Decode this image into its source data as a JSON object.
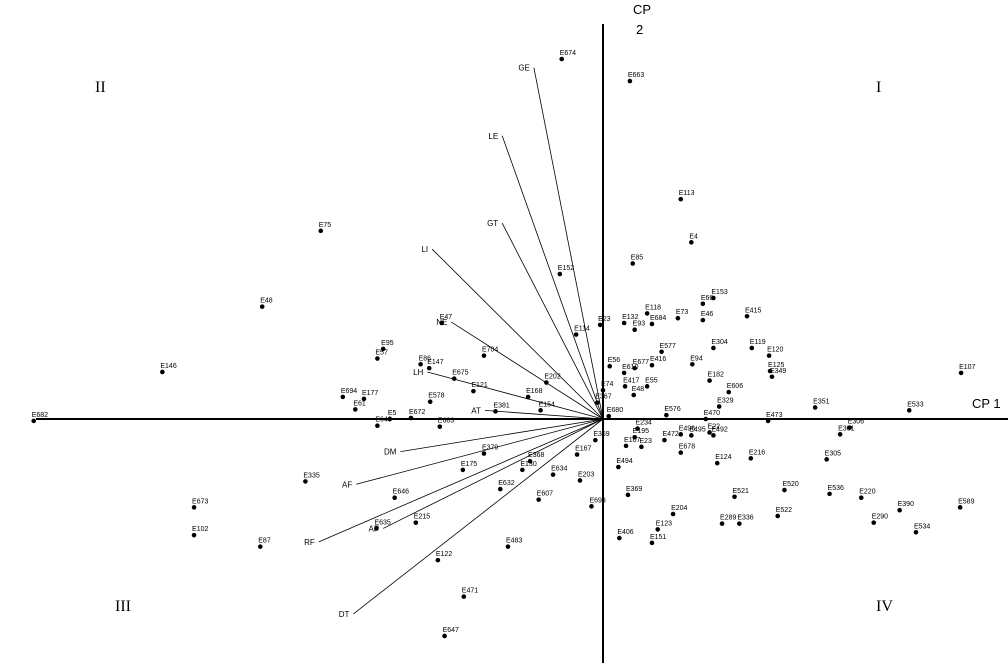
{
  "chart_data": {
    "type": "scatter",
    "title": "",
    "axes": {
      "x_label": "CP 1",
      "y_label": [
        "CP",
        "2"
      ]
    },
    "quadrant_labels": [
      "I",
      "II",
      "III",
      "IV"
    ],
    "xlim": [
      -6.0,
      4.0
    ],
    "ylim": [
      -2.7,
      4.0
    ],
    "grid": false,
    "legend": "none",
    "variables": [
      {
        "name": "GE",
        "x": -0.72,
        "y": 3.66
      },
      {
        "name": "LE",
        "x": -1.05,
        "y": 2.95
      },
      {
        "name": "GT",
        "x": -1.05,
        "y": 2.04
      },
      {
        "name": "LI",
        "x": -1.78,
        "y": 1.77
      },
      {
        "name": "NE",
        "x": -1.58,
        "y": 1.01
      },
      {
        "name": "LH",
        "x": -1.83,
        "y": 0.49
      },
      {
        "name": "AT",
        "x": -1.23,
        "y": 0.09
      },
      {
        "name": "DM",
        "x": -2.11,
        "y": -0.34
      },
      {
        "name": "AF",
        "x": -2.57,
        "y": -0.68
      },
      {
        "name": "AP",
        "x": -2.29,
        "y": -1.14
      },
      {
        "name": "RF",
        "x": -2.96,
        "y": -1.28
      },
      {
        "name": "DT",
        "x": -2.6,
        "y": -2.03
      }
    ],
    "points": [
      {
        "label": "E674",
        "x": -0.43,
        "y": 3.75
      },
      {
        "label": "E663",
        "x": 0.28,
        "y": 3.52
      },
      {
        "label": "E113",
        "x": 0.81,
        "y": 2.29
      },
      {
        "label": "E4",
        "x": 0.92,
        "y": 1.84
      },
      {
        "label": "E85",
        "x": 0.31,
        "y": 1.62
      },
      {
        "label": "E75",
        "x": -2.94,
        "y": 1.96
      },
      {
        "label": "E48",
        "x": -3.55,
        "y": 1.17
      },
      {
        "label": "E146",
        "x": -4.59,
        "y": 0.49
      },
      {
        "label": "E682",
        "x": -5.93,
        "y": -0.02
      },
      {
        "label": "E107",
        "x": 3.73,
        "y": 0.48
      },
      {
        "label": "E533",
        "x": 3.19,
        "y": 0.09
      },
      {
        "label": "E589",
        "x": 3.72,
        "y": -0.92
      },
      {
        "label": "E534",
        "x": 3.26,
        "y": -1.18
      },
      {
        "label": "E390",
        "x": 3.09,
        "y": -0.95
      },
      {
        "label": "E290",
        "x": 2.82,
        "y": -1.08
      },
      {
        "label": "E153",
        "x": 1.15,
        "y": 1.26
      },
      {
        "label": "E415",
        "x": 1.5,
        "y": 1.07
      },
      {
        "label": "E66",
        "x": 1.04,
        "y": 1.2
      },
      {
        "label": "E73",
        "x": 0.78,
        "y": 1.05
      },
      {
        "label": "E46",
        "x": 1.04,
        "y": 1.03
      },
      {
        "label": "E118",
        "x": 0.46,
        "y": 1.1
      },
      {
        "label": "E684",
        "x": 0.51,
        "y": 0.99
      },
      {
        "label": "E23",
        "x": -0.03,
        "y": 0.98
      },
      {
        "label": "E132",
        "x": 0.22,
        "y": 1.0
      },
      {
        "label": "E93",
        "x": 0.33,
        "y": 0.93
      },
      {
        "label": "E152",
        "x": -0.45,
        "y": 1.51
      },
      {
        "label": "E114",
        "x": -0.28,
        "y": 0.88
      },
      {
        "label": "E304",
        "x": 1.15,
        "y": 0.74
      },
      {
        "label": "E119",
        "x": 1.55,
        "y": 0.74
      },
      {
        "label": "E120",
        "x": 1.73,
        "y": 0.66
      },
      {
        "label": "E577",
        "x": 0.61,
        "y": 0.7
      },
      {
        "label": "E94",
        "x": 0.93,
        "y": 0.57
      },
      {
        "label": "E56",
        "x": 0.07,
        "y": 0.55
      },
      {
        "label": "E677",
        "x": 0.33,
        "y": 0.53
      },
      {
        "label": "E416",
        "x": 0.51,
        "y": 0.56
      },
      {
        "label": "E610",
        "x": 0.22,
        "y": 0.48
      },
      {
        "label": "E182",
        "x": 1.11,
        "y": 0.4
      },
      {
        "label": "E125",
        "x": 1.74,
        "y": 0.5
      },
      {
        "label": "E349",
        "x": 1.76,
        "y": 0.44
      },
      {
        "label": "E417",
        "x": 0.23,
        "y": 0.34
      },
      {
        "label": "E55",
        "x": 0.46,
        "y": 0.34
      },
      {
        "label": "E48b",
        "x": 0.32,
        "y": 0.25
      },
      {
        "label": "E606",
        "x": 1.31,
        "y": 0.28
      },
      {
        "label": "E329",
        "x": 1.21,
        "y": 0.13
      },
      {
        "label": "E351",
        "x": 2.21,
        "y": 0.12
      },
      {
        "label": "E74",
        "x": 0.0,
        "y": 0.3
      },
      {
        "label": "E367",
        "x": -0.06,
        "y": 0.17
      },
      {
        "label": "E202",
        "x": -0.59,
        "y": 0.38
      },
      {
        "label": "E168",
        "x": -0.78,
        "y": 0.23
      },
      {
        "label": "E154",
        "x": -0.65,
        "y": 0.09
      },
      {
        "label": "E121",
        "x": -1.35,
        "y": 0.29
      },
      {
        "label": "E381",
        "x": -1.12,
        "y": 0.08
      },
      {
        "label": "E578",
        "x": -1.8,
        "y": 0.18
      },
      {
        "label": "E675",
        "x": -1.55,
        "y": 0.42
      },
      {
        "label": "E147",
        "x": -1.81,
        "y": 0.53
      },
      {
        "label": "E86",
        "x": -1.9,
        "y": 0.57
      },
      {
        "label": "E57",
        "x": -2.35,
        "y": 0.63
      },
      {
        "label": "E95",
        "x": -2.29,
        "y": 0.73
      },
      {
        "label": "E47",
        "x": -1.68,
        "y": 1.0
      },
      {
        "label": "E704",
        "x": -1.24,
        "y": 0.66
      },
      {
        "label": "E694",
        "x": -2.71,
        "y": 0.23
      },
      {
        "label": "E177",
        "x": -2.49,
        "y": 0.21
      },
      {
        "label": "E61",
        "x": -2.58,
        "y": 0.1
      },
      {
        "label": "E5",
        "x": -2.22,
        "y": 0.0
      },
      {
        "label": "E672",
        "x": -2.0,
        "y": 0.01
      },
      {
        "label": "E649",
        "x": -2.35,
        "y": -0.07
      },
      {
        "label": "E683",
        "x": -1.7,
        "y": -0.08
      },
      {
        "label": "E680",
        "x": 0.06,
        "y": 0.03
      },
      {
        "label": "E576",
        "x": 0.66,
        "y": 0.04
      },
      {
        "label": "E470",
        "x": 1.07,
        "y": 0.0
      },
      {
        "label": "E473",
        "x": 1.72,
        "y": -0.02
      },
      {
        "label": "E306",
        "x": 2.57,
        "y": -0.09
      },
      {
        "label": "E301",
        "x": 2.47,
        "y": -0.16
      },
      {
        "label": "E305",
        "x": 2.33,
        "y": -0.42
      },
      {
        "label": "E216",
        "x": 1.54,
        "y": -0.41
      },
      {
        "label": "E492",
        "x": 1.15,
        "y": -0.17
      },
      {
        "label": "E22",
        "x": 1.11,
        "y": -0.14
      },
      {
        "label": "E496",
        "x": 0.81,
        "y": -0.16
      },
      {
        "label": "E495",
        "x": 0.92,
        "y": -0.17
      },
      {
        "label": "E124",
        "x": 1.19,
        "y": -0.46
      },
      {
        "label": "E678",
        "x": 0.81,
        "y": -0.35
      },
      {
        "label": "E472",
        "x": 0.64,
        "y": -0.22
      },
      {
        "label": "E234",
        "x": 0.36,
        "y": -0.1
      },
      {
        "label": "E195",
        "x": 0.33,
        "y": -0.19
      },
      {
        "label": "E23b",
        "x": 0.4,
        "y": -0.29
      },
      {
        "label": "E107b",
        "x": 0.24,
        "y": -0.28
      },
      {
        "label": "E494",
        "x": 0.16,
        "y": -0.5
      },
      {
        "label": "E369",
        "x": 0.26,
        "y": -0.79
      },
      {
        "label": "E369b",
        "x": -0.08,
        "y": -0.22
      },
      {
        "label": "E379",
        "x": -1.24,
        "y": -0.36
      },
      {
        "label": "E368",
        "x": -0.76,
        "y": -0.44
      },
      {
        "label": "E167",
        "x": -0.27,
        "y": -0.37
      },
      {
        "label": "E130",
        "x": -0.84,
        "y": -0.53
      },
      {
        "label": "E634",
        "x": -0.52,
        "y": -0.58
      },
      {
        "label": "E175",
        "x": -1.46,
        "y": -0.53
      },
      {
        "label": "E335",
        "x": -3.1,
        "y": -0.65
      },
      {
        "label": "E203",
        "x": -0.24,
        "y": -0.64
      },
      {
        "label": "E632",
        "x": -1.07,
        "y": -0.73
      },
      {
        "label": "E646",
        "x": -2.17,
        "y": -0.82
      },
      {
        "label": "E607",
        "x": -0.67,
        "y": -0.84
      },
      {
        "label": "E693",
        "x": -0.12,
        "y": -0.91
      },
      {
        "label": "E204",
        "x": 0.73,
        "y": -0.99
      },
      {
        "label": "E521",
        "x": 1.37,
        "y": -0.81
      },
      {
        "label": "E520",
        "x": 1.89,
        "y": -0.74
      },
      {
        "label": "E536",
        "x": 2.36,
        "y": -0.78
      },
      {
        "label": "E220",
        "x": 2.69,
        "y": -0.82
      },
      {
        "label": "E522",
        "x": 1.82,
        "y": -1.01
      },
      {
        "label": "E336",
        "x": 1.42,
        "y": -1.09
      },
      {
        "label": "E289",
        "x": 1.24,
        "y": -1.09
      },
      {
        "label": "E123",
        "x": 0.57,
        "y": -1.15
      },
      {
        "label": "E406",
        "x": 0.17,
        "y": -1.24
      },
      {
        "label": "E151",
        "x": 0.51,
        "y": -1.29
      },
      {
        "label": "E215",
        "x": -1.95,
        "y": -1.08
      },
      {
        "label": "E635",
        "x": -2.36,
        "y": -1.14
      },
      {
        "label": "E673",
        "x": -4.26,
        "y": -0.92
      },
      {
        "label": "E102",
        "x": -4.26,
        "y": -1.21
      },
      {
        "label": "E87",
        "x": -3.57,
        "y": -1.33
      },
      {
        "label": "E483",
        "x": -0.99,
        "y": -1.33
      },
      {
        "label": "E122",
        "x": -1.72,
        "y": -1.47
      },
      {
        "label": "E471",
        "x": -1.45,
        "y": -1.85
      },
      {
        "label": "E647",
        "x": -1.65,
        "y": -2.26
      }
    ]
  }
}
